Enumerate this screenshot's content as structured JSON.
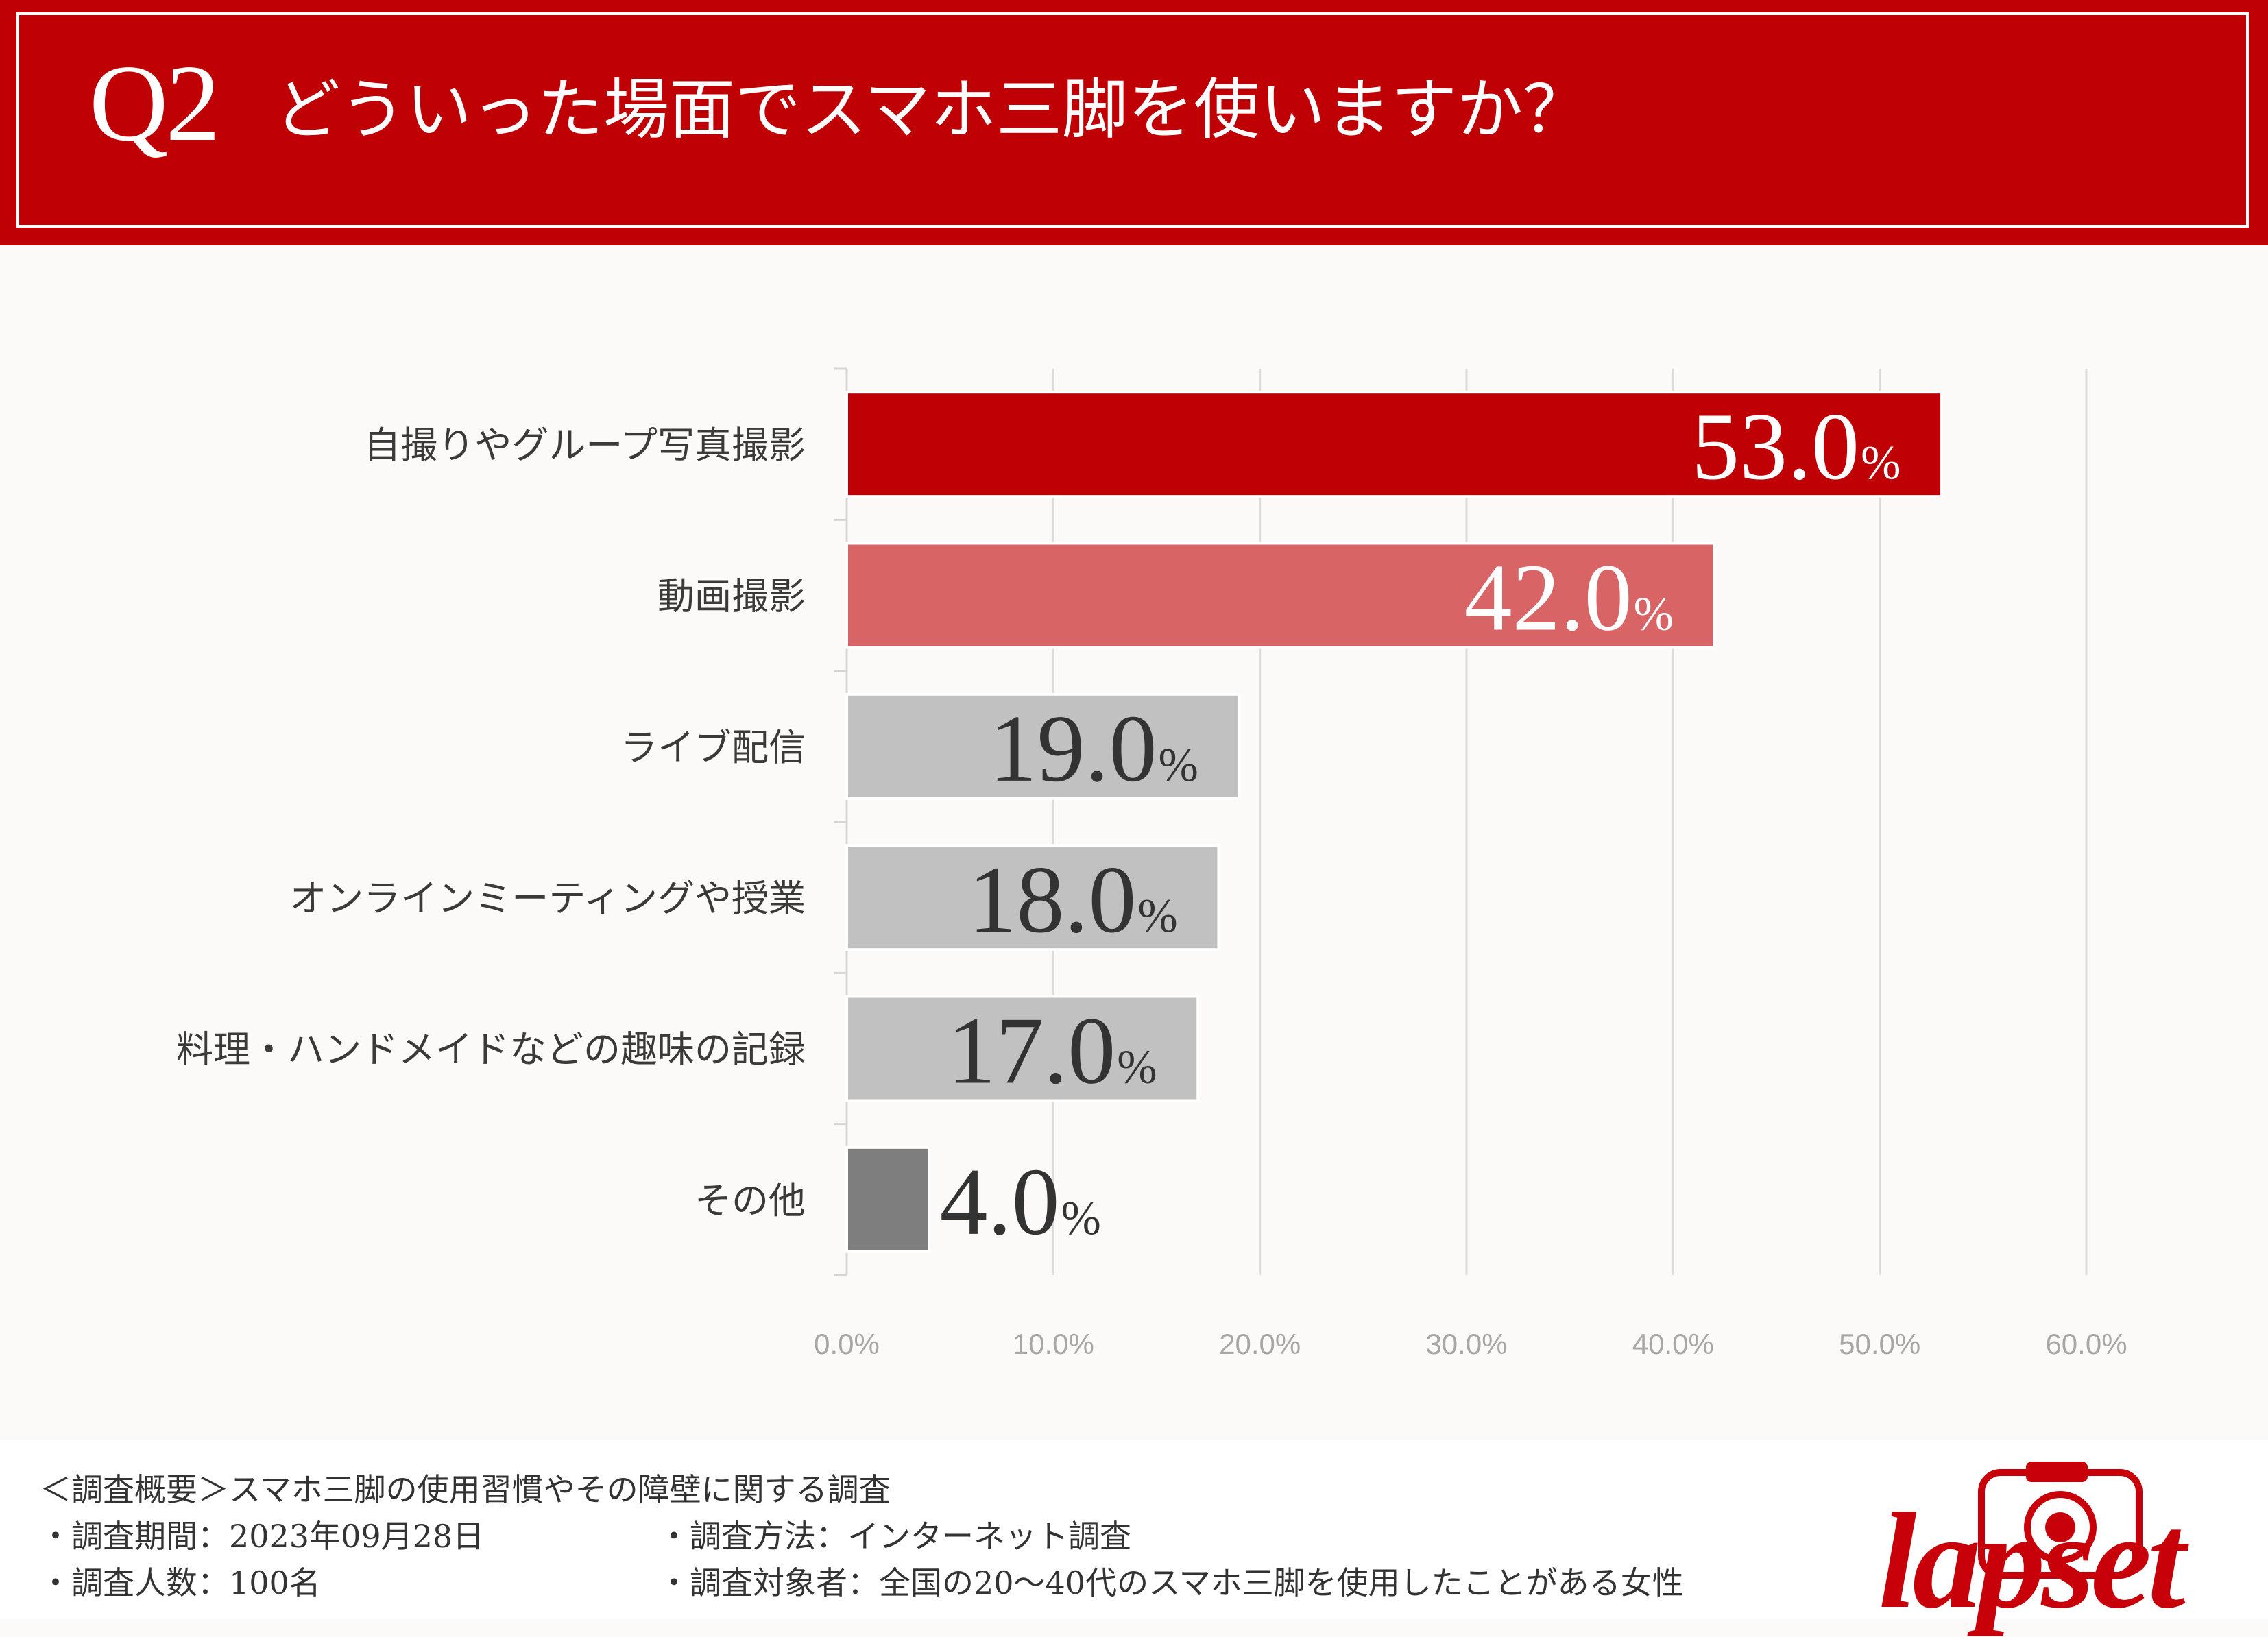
{
  "header": {
    "q_number": "Q2",
    "question": "どういった場面でスマホ三脚を使いますか？"
  },
  "chart_data": {
    "type": "bar",
    "orientation": "horizontal",
    "categories": [
      "自撮りやグループ写真撮影",
      "動画撮影",
      "ライブ配信",
      "オンラインミーティングや授業",
      "料理・ハンドメイドなどの趣味の記録",
      "その他"
    ],
    "values": [
      53.0,
      42.0,
      19.0,
      18.0,
      17.0,
      4.0
    ],
    "value_labels": [
      "53.0",
      "42.0",
      "19.0",
      "18.0",
      "17.0",
      "4.0"
    ],
    "unit": "%",
    "bar_colors": [
      "#bf0005",
      "#d96466",
      "#c1c1c1",
      "#c1c1c1",
      "#c1c1c1",
      "#7e7e7e"
    ],
    "label_colors": [
      "#ffffff",
      "#ffffff",
      "#333333",
      "#333333",
      "#333333",
      "#333333"
    ],
    "xlim": [
      0,
      60
    ],
    "x_ticks": [
      0,
      10,
      20,
      30,
      40,
      50,
      60
    ],
    "x_tick_labels": [
      "0.0%",
      "10.0%",
      "20.0%",
      "30.0%",
      "40.0%",
      "50.0%",
      "60.0%"
    ],
    "grid": true,
    "title": "",
    "xlabel": "",
    "ylabel": ""
  },
  "footer": {
    "summary": "＜調査概要＞スマホ三脚の使用習慣やその障壁に関する調査",
    "period": "・調査期間：2023年09月28日",
    "method": "・調査方法：インターネット調査",
    "count": "・調査人数：100名",
    "target": "・調査対象者：全国の20〜40代のスマホ三脚を使用したことがある女性"
  },
  "logo": {
    "text": "lapset"
  },
  "colors": {
    "brand": "#bf0005",
    "background": "#fbfaf8"
  }
}
